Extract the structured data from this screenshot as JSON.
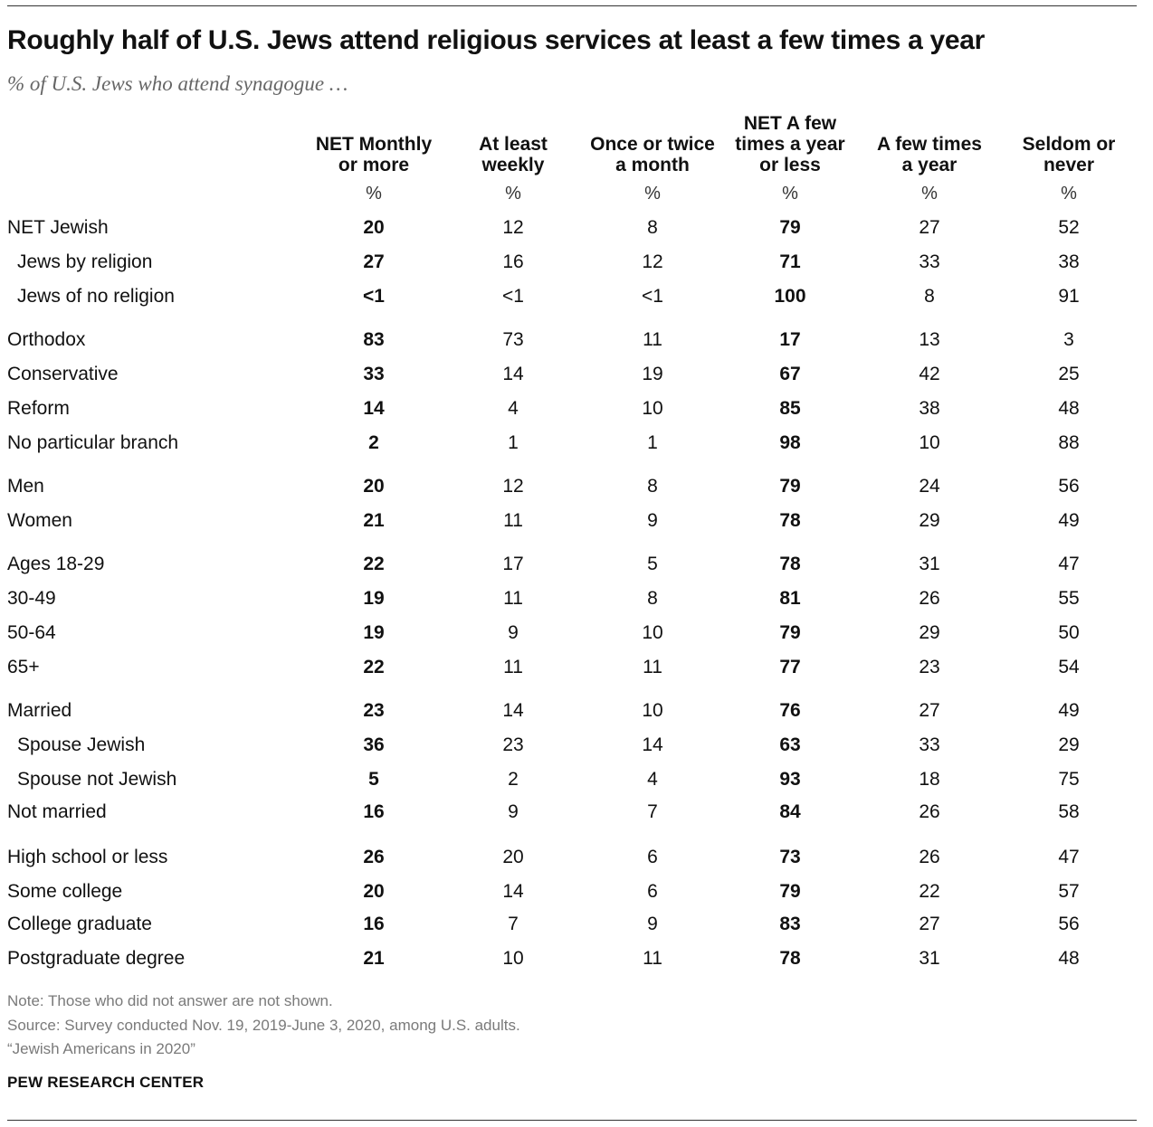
{
  "title": "Roughly half of U.S. Jews attend religious services at least a few times a year",
  "subtitle": "% of U.S. Jews who attend synagogue …",
  "chart_data": {
    "type": "table",
    "columns": [
      {
        "lines": [
          "NET Monthly",
          "or more"
        ],
        "unit": "%",
        "bold": true
      },
      {
        "lines": [
          "At least",
          "weekly"
        ],
        "unit": "%",
        "bold": false
      },
      {
        "lines": [
          "Once or twice",
          "a month"
        ],
        "unit": "%",
        "bold": false
      },
      {
        "lines": [
          "NET A few",
          "times a year",
          "or less"
        ],
        "unit": "%",
        "bold": true
      },
      {
        "lines": [
          "A few times",
          "a year"
        ],
        "unit": "%",
        "bold": false
      },
      {
        "lines": [
          "Seldom or",
          "never"
        ],
        "unit": "%",
        "bold": false
      }
    ],
    "rows": [
      {
        "label": "NET Jewish",
        "indent": false,
        "values": [
          "20",
          "12",
          "8",
          "79",
          "27",
          "52"
        ]
      },
      {
        "label": "Jews by religion",
        "indent": true,
        "values": [
          "27",
          "16",
          "12",
          "71",
          "33",
          "38"
        ]
      },
      {
        "label": "Jews of no religion",
        "indent": true,
        "values": [
          "<1",
          "<1",
          "<1",
          "100",
          "8",
          "91"
        ]
      },
      {
        "label": "Orthodox",
        "indent": false,
        "values": [
          "83",
          "73",
          "11",
          "17",
          "13",
          "3"
        ]
      },
      {
        "label": "Conservative",
        "indent": false,
        "values": [
          "33",
          "14",
          "19",
          "67",
          "42",
          "25"
        ]
      },
      {
        "label": "Reform",
        "indent": false,
        "values": [
          "14",
          "4",
          "10",
          "85",
          "38",
          "48"
        ]
      },
      {
        "label": "No particular branch",
        "indent": false,
        "values": [
          "2",
          "1",
          "1",
          "98",
          "10",
          "88"
        ]
      },
      {
        "label": "Men",
        "indent": false,
        "values": [
          "20",
          "12",
          "8",
          "79",
          "24",
          "56"
        ]
      },
      {
        "label": "Women",
        "indent": false,
        "values": [
          "21",
          "11",
          "9",
          "78",
          "29",
          "49"
        ]
      },
      {
        "label": "Ages 18-29",
        "indent": false,
        "values": [
          "22",
          "17",
          "5",
          "78",
          "31",
          "47"
        ]
      },
      {
        "label": "30-49",
        "indent": false,
        "values": [
          "19",
          "11",
          "8",
          "81",
          "26",
          "55"
        ]
      },
      {
        "label": "50-64",
        "indent": false,
        "values": [
          "19",
          "9",
          "10",
          "79",
          "29",
          "50"
        ]
      },
      {
        "label": "65+",
        "indent": false,
        "values": [
          "22",
          "11",
          "11",
          "77",
          "23",
          "54"
        ]
      },
      {
        "label": "Married",
        "indent": false,
        "values": [
          "23",
          "14",
          "10",
          "76",
          "27",
          "49"
        ]
      },
      {
        "label": "Spouse Jewish",
        "indent": true,
        "values": [
          "36",
          "23",
          "14",
          "63",
          "33",
          "29"
        ]
      },
      {
        "label": "Spouse not Jewish",
        "indent": true,
        "values": [
          "5",
          "2",
          "4",
          "93",
          "18",
          "75"
        ]
      },
      {
        "label": "Not married",
        "indent": false,
        "values": [
          "16",
          "9",
          "7",
          "84",
          "26",
          "58"
        ]
      },
      {
        "label": "High school or less",
        "indent": false,
        "values": [
          "26",
          "20",
          "6",
          "73",
          "26",
          "47"
        ]
      },
      {
        "label": "Some college",
        "indent": false,
        "values": [
          "20",
          "14",
          "6",
          "79",
          "22",
          "57"
        ]
      },
      {
        "label": "College graduate",
        "indent": false,
        "values": [
          "16",
          "7",
          "9",
          "83",
          "27",
          "56"
        ]
      },
      {
        "label": "Postgraduate degree",
        "indent": false,
        "values": [
          "21",
          "10",
          "11",
          "78",
          "31",
          "48"
        ]
      }
    ]
  },
  "notes": {
    "note": "Note: Those who did not answer are not shown.",
    "source": "Source: Survey conducted Nov. 19, 2019-June 3, 2020, among U.S. adults.",
    "report": "“Jewish Americans in 2020”"
  },
  "brand": "PEW RESEARCH CENTER"
}
